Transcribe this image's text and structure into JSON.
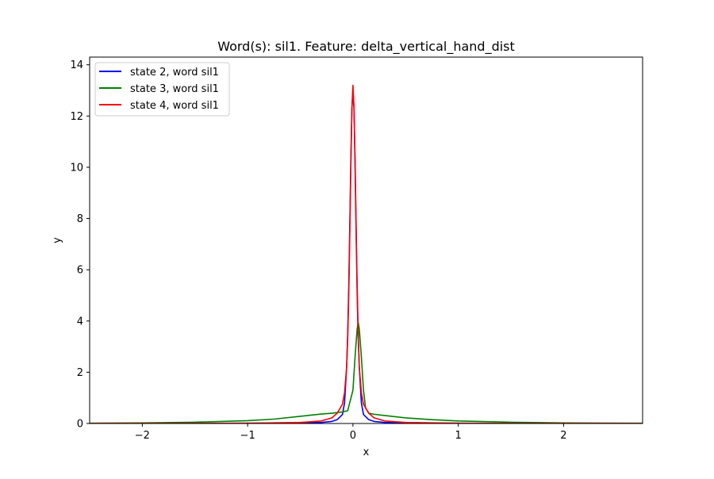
{
  "chart_data": {
    "type": "line",
    "title": "Word(s): sil1. Feature: delta_vertical_hand_dist",
    "xlabel": "x",
    "ylabel": "y",
    "xlim": [
      -2.5,
      2.75
    ],
    "ylim": [
      0,
      14.3
    ],
    "x_ticks": [
      -2,
      -1,
      0,
      1,
      2
    ],
    "x_tick_labels": [
      "−2",
      "−1",
      "0",
      "1",
      "2"
    ],
    "y_ticks": [
      0,
      2,
      4,
      6,
      8,
      10,
      12,
      14
    ],
    "y_tick_labels": [
      "0",
      "2",
      "4",
      "6",
      "8",
      "10",
      "12",
      "14"
    ],
    "grid": false,
    "legend_placement": "top-left",
    "series": [
      {
        "name": "state 2, word sil1",
        "color": "#0000ff",
        "x": [
          -2.5,
          -1.0,
          -0.5,
          -0.3,
          -0.2,
          -0.15,
          -0.1,
          -0.08,
          -0.06,
          -0.05,
          -0.04,
          -0.03,
          -0.02,
          -0.01,
          0.0,
          0.01,
          0.02,
          0.03,
          0.04,
          0.05,
          0.06,
          0.08,
          0.1,
          0.15,
          0.2,
          0.3,
          0.5,
          1.0,
          2.75
        ],
        "y": [
          0.0,
          0.01,
          0.02,
          0.04,
          0.08,
          0.15,
          0.35,
          0.8,
          2.2,
          3.5,
          5.3,
          7.7,
          10.3,
          12.3,
          13.0,
          12.3,
          10.3,
          7.7,
          5.3,
          3.5,
          2.2,
          0.8,
          0.35,
          0.15,
          0.08,
          0.04,
          0.02,
          0.01,
          0.0
        ]
      },
      {
        "name": "state 3, word sil1",
        "color": "#008000",
        "x": [
          -2.5,
          -2.0,
          -1.5,
          -1.0,
          -0.75,
          -0.5,
          -0.3,
          -0.2,
          -0.1,
          -0.05,
          0.0,
          0.02,
          0.04,
          0.05,
          0.06,
          0.08,
          0.1,
          0.12,
          0.15,
          0.2,
          0.3,
          0.5,
          0.75,
          1.0,
          1.5,
          2.0,
          2.75
        ],
        "y": [
          0.01,
          0.02,
          0.05,
          0.11,
          0.17,
          0.28,
          0.37,
          0.4,
          0.45,
          0.5,
          1.3,
          2.6,
          3.7,
          3.95,
          3.7,
          2.6,
          1.3,
          0.6,
          0.4,
          0.36,
          0.31,
          0.22,
          0.15,
          0.1,
          0.05,
          0.02,
          0.01
        ]
      },
      {
        "name": "state 4, word sil1",
        "color": "#ff0000",
        "x": [
          -2.5,
          -1.0,
          -0.5,
          -0.3,
          -0.2,
          -0.15,
          -0.1,
          -0.08,
          -0.06,
          -0.05,
          -0.04,
          -0.03,
          -0.02,
          -0.01,
          0.0,
          0.01,
          0.02,
          0.03,
          0.04,
          0.05,
          0.06,
          0.08,
          0.1,
          0.15,
          0.2,
          0.3,
          0.5,
          1.0,
          2.75
        ],
        "y": [
          0.0,
          0.01,
          0.04,
          0.1,
          0.22,
          0.4,
          0.75,
          1.2,
          2.2,
          3.3,
          5.0,
          7.4,
          10.0,
          12.3,
          13.2,
          12.3,
          10.0,
          7.4,
          5.0,
          3.3,
          2.2,
          1.2,
          0.75,
          0.4,
          0.22,
          0.1,
          0.04,
          0.01,
          0.0
        ]
      }
    ]
  }
}
